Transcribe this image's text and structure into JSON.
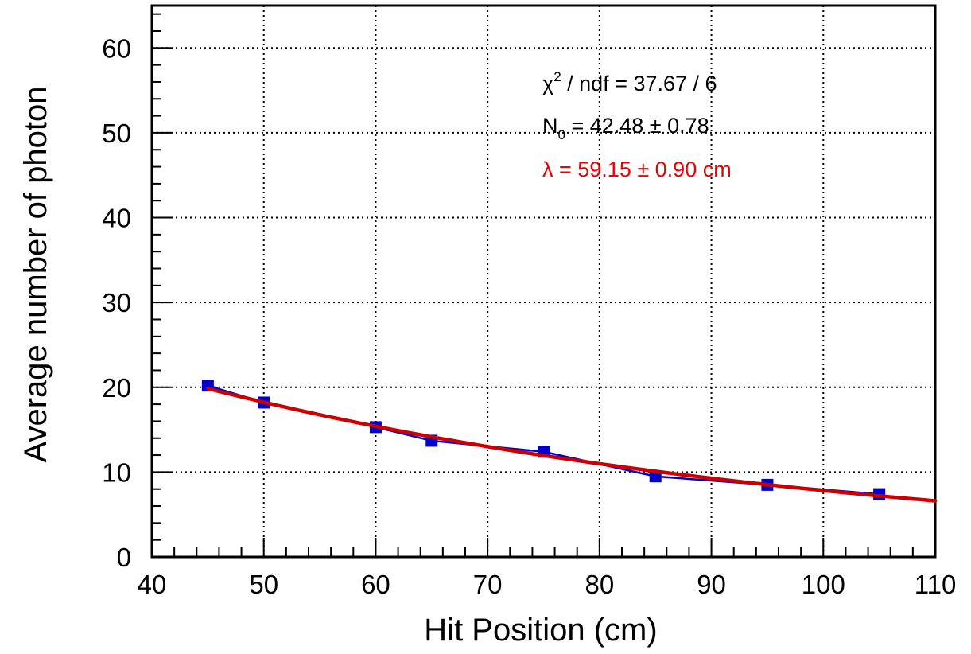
{
  "chart_data": {
    "type": "scatter",
    "title": "",
    "xlabel": "Hit Position (cm)",
    "ylabel": "Average number of photon",
    "xlim": [
      40,
      110
    ],
    "ylim": [
      0,
      65
    ],
    "x_ticks": [
      40,
      50,
      60,
      70,
      80,
      90,
      100,
      110
    ],
    "y_ticks": [
      0,
      10,
      20,
      30,
      40,
      50,
      60
    ],
    "x_tick_labels": [
      "40",
      "50",
      "60",
      "70",
      "80",
      "90",
      "100",
      "110"
    ],
    "y_tick_labels": [
      "0",
      "10",
      "20",
      "30",
      "40",
      "50",
      "60"
    ],
    "grid": true,
    "series": [
      {
        "color": "#0000cc",
        "marker": "square",
        "connected": true,
        "x": [
          45,
          50,
          60,
          65,
          75,
          85,
          95,
          105
        ],
        "y": [
          20.2,
          18.2,
          15.3,
          13.7,
          12.4,
          9.5,
          8.5,
          7.4
        ]
      }
    ],
    "fit": {
      "function": "exponential",
      "color": "#cc0000",
      "N0": 42.48,
      "lambda": 59.15,
      "x_range": [
        45,
        110
      ]
    },
    "stats_box": {
      "line1_prefix": "χ",
      "line1_sup": "2",
      "line1_rest": " / ndf = 37.67 / 6",
      "line2_prefix": "N",
      "line2_sub": "0",
      "line2_rest": " = 42.48 ± 0.78",
      "line3": "λ = 59.15 ± 0.90 cm",
      "line3_color": "#ee0000"
    }
  }
}
